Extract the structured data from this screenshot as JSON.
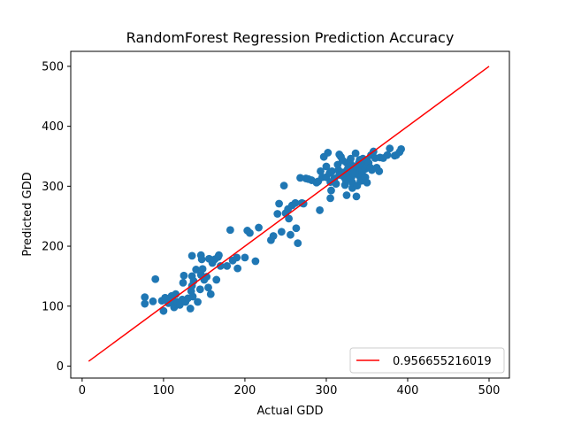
{
  "chart_data": {
    "type": "scatter",
    "title": "RandomForest Regression Prediction Accuracy",
    "xlabel": "Actual GDD",
    "ylabel": "Predicted GDD",
    "xlim": [
      -14,
      525
    ],
    "ylim": [
      -20,
      525
    ],
    "xticks": [
      0,
      100,
      200,
      300,
      400,
      500
    ],
    "yticks": [
      0,
      100,
      200,
      300,
      400,
      500
    ],
    "grid": false,
    "legend_position": "lower-right",
    "colors": {
      "points": "#1f77b4",
      "line": "#ff0000",
      "axes": "#000000"
    },
    "series": [
      {
        "kind": "scatter",
        "points": [
          [
            77,
            104
          ],
          [
            77,
            115
          ],
          [
            87,
            108
          ],
          [
            90,
            145
          ],
          [
            98,
            109
          ],
          [
            100,
            92
          ],
          [
            102,
            114
          ],
          [
            104,
            111
          ],
          [
            106,
            105
          ],
          [
            110,
            117
          ],
          [
            112,
            109
          ],
          [
            113,
            98
          ],
          [
            115,
            120
          ],
          [
            117,
            107
          ],
          [
            120,
            102
          ],
          [
            123,
            111
          ],
          [
            124,
            139
          ],
          [
            125,
            151
          ],
          [
            127,
            107
          ],
          [
            130,
            113
          ],
          [
            133,
            96
          ],
          [
            134,
            125
          ],
          [
            135,
            134
          ],
          [
            135,
            150
          ],
          [
            135,
            184
          ],
          [
            136,
            116
          ],
          [
            137,
            142
          ],
          [
            140,
            161
          ],
          [
            142,
            107
          ],
          [
            145,
            128
          ],
          [
            146,
            152
          ],
          [
            146,
            185
          ],
          [
            147,
            178
          ],
          [
            148,
            162
          ],
          [
            150,
            144
          ],
          [
            153,
            149
          ],
          [
            155,
            131
          ],
          [
            156,
            179
          ],
          [
            158,
            120
          ],
          [
            160,
            172
          ],
          [
            163,
            178
          ],
          [
            165,
            144
          ],
          [
            167,
            182
          ],
          [
            168,
            185
          ],
          [
            170,
            167
          ],
          [
            178,
            167
          ],
          [
            182,
            227
          ],
          [
            185,
            176
          ],
          [
            190,
            181
          ],
          [
            191,
            163
          ],
          [
            200,
            181
          ],
          [
            203,
            226
          ],
          [
            206,
            222
          ],
          [
            213,
            175
          ],
          [
            217,
            231
          ],
          [
            232,
            210
          ],
          [
            235,
            217
          ],
          [
            240,
            254
          ],
          [
            242,
            271
          ],
          [
            245,
            224
          ],
          [
            248,
            301
          ],
          [
            250,
            255
          ],
          [
            253,
            262
          ],
          [
            254,
            246
          ],
          [
            256,
            219
          ],
          [
            258,
            268
          ],
          [
            262,
            272
          ],
          [
            263,
            230
          ],
          [
            265,
            205
          ],
          [
            268,
            314
          ],
          [
            270,
            272
          ],
          [
            272,
            271
          ],
          [
            275,
            313
          ],
          [
            278,
            312
          ],
          [
            282,
            310
          ],
          [
            288,
            306
          ],
          [
            290,
            308
          ],
          [
            292,
            260
          ],
          [
            293,
            325
          ],
          [
            295,
            315
          ],
          [
            297,
            349
          ],
          [
            300,
            315
          ],
          [
            300,
            333
          ],
          [
            302,
            356
          ],
          [
            304,
            322
          ],
          [
            305,
            307
          ],
          [
            305,
            280
          ],
          [
            306,
            293
          ],
          [
            307,
            325
          ],
          [
            310,
            313
          ],
          [
            312,
            304
          ],
          [
            314,
            336
          ],
          [
            315,
            327
          ],
          [
            316,
            319
          ],
          [
            316,
            353
          ],
          [
            318,
            319
          ],
          [
            318,
            349
          ],
          [
            320,
            343
          ],
          [
            321,
            323
          ],
          [
            322,
            315
          ],
          [
            323,
            302
          ],
          [
            324,
            310
          ],
          [
            325,
            339
          ],
          [
            325,
            285
          ],
          [
            326,
            328
          ],
          [
            328,
            322
          ],
          [
            328,
            341
          ],
          [
            328,
            321
          ],
          [
            330,
            337
          ],
          [
            330,
            346
          ],
          [
            331,
            327
          ],
          [
            331,
            315
          ],
          [
            332,
            306
          ],
          [
            332,
            297
          ],
          [
            333,
            321
          ],
          [
            334,
            333
          ],
          [
            335,
            321
          ],
          [
            335,
            326
          ],
          [
            336,
            355
          ],
          [
            337,
            283
          ],
          [
            338,
            332
          ],
          [
            338,
            301
          ],
          [
            340,
            327
          ],
          [
            340,
            339
          ],
          [
            340,
            318
          ],
          [
            341,
            344
          ],
          [
            342,
            325
          ],
          [
            342,
            309
          ],
          [
            343,
            309
          ],
          [
            344,
            323
          ],
          [
            345,
            346
          ],
          [
            346,
            335
          ],
          [
            348,
            329
          ],
          [
            348,
            315
          ],
          [
            350,
            334
          ],
          [
            350,
            343
          ],
          [
            350,
            306
          ],
          [
            352,
            339
          ],
          [
            354,
            331
          ],
          [
            355,
            352
          ],
          [
            356,
            327
          ],
          [
            358,
            358
          ],
          [
            360,
            347
          ],
          [
            362,
            331
          ],
          [
            365,
            325
          ],
          [
            366,
            348
          ],
          [
            370,
            347
          ],
          [
            375,
            352
          ],
          [
            378,
            363
          ],
          [
            384,
            351
          ],
          [
            386,
            352
          ],
          [
            390,
            357
          ],
          [
            392,
            362
          ]
        ]
      },
      {
        "kind": "line",
        "name": "0.956655216019",
        "from": [
          8,
          8
        ],
        "to": [
          500,
          500
        ]
      }
    ]
  }
}
